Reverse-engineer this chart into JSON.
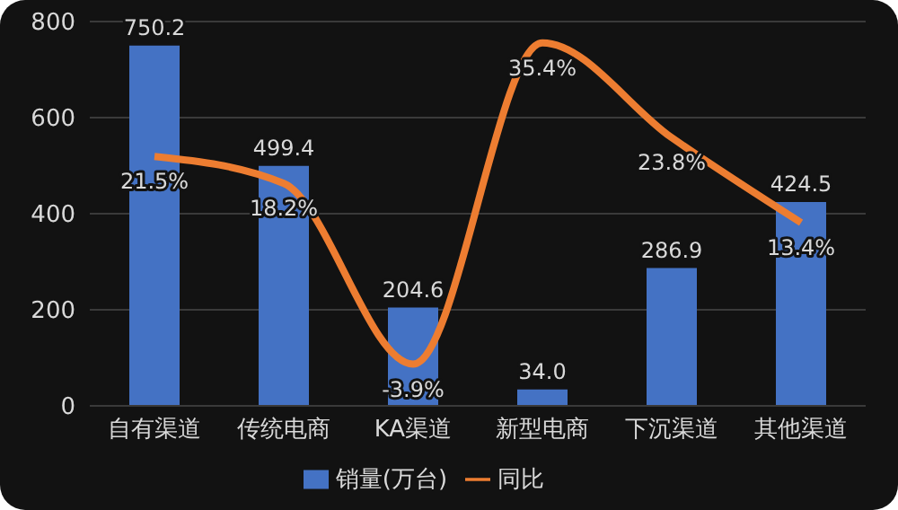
{
  "chart_data": {
    "type": "bar",
    "categories": [
      "自有渠道",
      "传统电商",
      "KA渠道",
      "新型电商",
      "下沉渠道",
      "其他渠道"
    ],
    "series": [
      {
        "name": "销量(万台)",
        "color": "#4472c4",
        "values": [
          750.2,
          499.4,
          204.6,
          34.0,
          286.9,
          424.5
        ],
        "value_labels": [
          "750.2",
          "499.4",
          "204.6",
          "34.0",
          "286.9",
          "424.5"
        ]
      },
      {
        "name": "同比",
        "type": "line",
        "axis": "y2",
        "color": "#ed7d31",
        "values": [
          21.5,
          18.2,
          -3.9,
          35.4,
          23.8,
          13.4
        ],
        "value_labels": [
          "21.5%",
          "18.2%",
          "-3.9%",
          "35.4%",
          "23.8%",
          "13.4%"
        ]
      }
    ],
    "ylim": [
      0,
      800
    ],
    "yticks": [
      0,
      200,
      400,
      600,
      800
    ],
    "y2lim": [
      -9,
      38
    ],
    "tick_labels": "xy",
    "grid": "y",
    "legend": "bottom",
    "marker": "none"
  }
}
